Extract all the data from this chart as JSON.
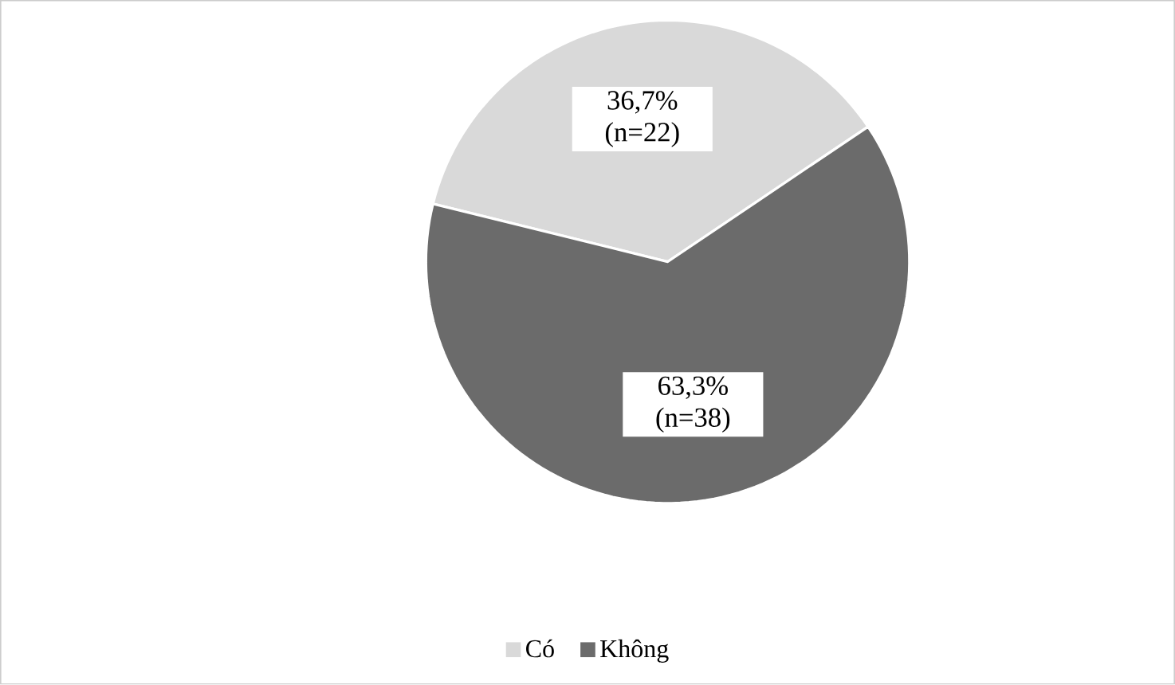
{
  "chart_data": {
    "type": "pie",
    "categories": [
      "Có",
      "Không"
    ],
    "values": [
      36.7,
      63.3
    ],
    "colors": [
      "#d9d9d9",
      "#6b6b6b"
    ],
    "value_labels": [
      "36,7% (n=22)",
      "63,3% (n=38)"
    ],
    "legend": "bottom"
  }
}
